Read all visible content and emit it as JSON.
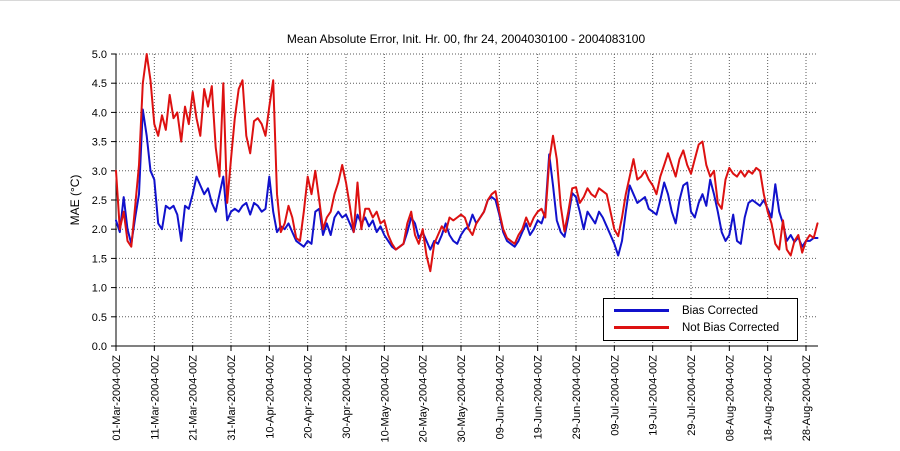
{
  "chart_data": {
    "type": "line",
    "title": "Mean Absolute Error, Init. Hr. 00, fhr 24, 2004030100 - 2004083100",
    "xlabel": "",
    "ylabel": "MAE (°C)",
    "ylim": [
      0.0,
      5.0
    ],
    "ytick_step": 0.5,
    "y_tick_labels": [
      "0.0",
      "0.5",
      "1.0",
      "1.5",
      "2.0",
      "2.5",
      "3.0",
      "3.5",
      "4.0",
      "4.5",
      "5.0"
    ],
    "grid": "dotted",
    "n_points": 184,
    "x_tick_day_index": [
      0,
      10,
      20,
      30,
      40,
      50,
      60,
      70,
      80,
      90,
      100,
      110,
      120,
      130,
      140,
      150,
      160,
      170,
      180
    ],
    "x_tick_labels": [
      "01-Mar-2004-00Z",
      "11-Mar-2004-00Z",
      "21-Mar-2004-00Z",
      "31-Mar-2004-00Z",
      "10-Apr-2004-00Z",
      "20-Apr-2004-00Z",
      "30-Apr-2004-00Z",
      "10-May-2004-00Z",
      "20-May-2004-00Z",
      "30-May-2004-00Z",
      "09-Jun-2004-00Z",
      "19-Jun-2004-00Z",
      "29-Jun-2004-00Z",
      "09-Jul-2004-00Z",
      "19-Jul-2004-00Z",
      "29-Jul-2004-00Z",
      "08-Aug-2004-00Z",
      "18-Aug-2004-00Z",
      "28-Aug-2004-00Z"
    ],
    "legend_position": "inside-lower-right",
    "series": [
      {
        "name": "Bias Corrected",
        "color": "#1111cc",
        "values": [
          2.15,
          1.95,
          2.55,
          2.0,
          1.75,
          2.2,
          2.6,
          4.05,
          3.6,
          3.0,
          2.85,
          2.1,
          2.0,
          2.4,
          2.35,
          2.4,
          2.25,
          1.8,
          2.4,
          2.35,
          2.6,
          2.9,
          2.75,
          2.6,
          2.7,
          2.45,
          2.3,
          2.6,
          2.9,
          2.15,
          2.3,
          2.35,
          2.3,
          2.4,
          2.45,
          2.25,
          2.45,
          2.4,
          2.3,
          2.35,
          2.9,
          2.3,
          1.95,
          2.05,
          2.0,
          2.1,
          1.95,
          1.8,
          1.75,
          1.7,
          1.8,
          1.75,
          2.3,
          2.35,
          1.9,
          2.1,
          1.9,
          2.2,
          2.3,
          2.2,
          2.25,
          2.1,
          1.95,
          2.25,
          2.1,
          2.2,
          2.05,
          2.15,
          1.95,
          2.05,
          1.9,
          1.8,
          1.7,
          1.65,
          1.7,
          1.75,
          1.95,
          2.2,
          2.1,
          1.85,
          1.95,
          1.8,
          1.65,
          1.8,
          1.75,
          1.9,
          2.1,
          1.9,
          1.8,
          1.75,
          1.9,
          2.0,
          2.05,
          2.25,
          2.1,
          2.2,
          2.3,
          2.5,
          2.55,
          2.5,
          2.25,
          1.95,
          1.8,
          1.75,
          1.7,
          1.8,
          1.95,
          2.1,
          1.9,
          2.0,
          2.15,
          2.1,
          2.3,
          3.28,
          2.75,
          2.15,
          1.95,
          1.87,
          2.2,
          2.62,
          2.55,
          2.3,
          2.0,
          2.3,
          2.2,
          2.1,
          2.3,
          2.2,
          2.05,
          1.9,
          1.75,
          1.55,
          1.8,
          2.3,
          2.75,
          2.6,
          2.45,
          2.5,
          2.55,
          2.35,
          2.3,
          2.25,
          2.5,
          2.8,
          2.6,
          2.3,
          2.1,
          2.5,
          2.75,
          2.8,
          2.3,
          2.2,
          2.45,
          2.6,
          2.4,
          2.85,
          2.6,
          2.3,
          1.95,
          1.8,
          1.9,
          2.25,
          1.8,
          1.75,
          2.2,
          2.45,
          2.5,
          2.45,
          2.4,
          2.5,
          2.35,
          2.2,
          2.77,
          2.3,
          2.1,
          1.8,
          1.9,
          1.78,
          1.86,
          1.7,
          1.8,
          1.8,
          1.85,
          1.85
        ]
      },
      {
        "name": "Not Bias Corrected",
        "color": "#dd1111",
        "values": [
          3.0,
          2.0,
          2.3,
          1.8,
          1.7,
          2.4,
          3.1,
          4.5,
          5.0,
          4.55,
          3.8,
          3.6,
          3.95,
          3.7,
          4.3,
          3.9,
          4.0,
          3.5,
          4.1,
          3.8,
          4.35,
          3.9,
          3.6,
          4.4,
          4.1,
          4.45,
          3.4,
          2.9,
          4.5,
          2.45,
          3.2,
          3.9,
          4.4,
          4.55,
          3.6,
          3.3,
          3.85,
          3.9,
          3.8,
          3.6,
          4.1,
          4.55,
          2.6,
          1.95,
          2.1,
          2.4,
          2.2,
          1.85,
          1.8,
          2.3,
          2.9,
          2.6,
          3.0,
          2.5,
          2.0,
          2.2,
          2.3,
          2.6,
          2.8,
          3.1,
          2.8,
          2.4,
          1.95,
          2.8,
          2.0,
          2.35,
          2.35,
          2.2,
          2.3,
          2.1,
          2.15,
          1.9,
          1.75,
          1.65,
          1.7,
          1.75,
          2.1,
          2.3,
          1.9,
          1.75,
          2.0,
          1.55,
          1.28,
          1.75,
          1.9,
          2.05,
          1.95,
          2.2,
          2.15,
          2.2,
          2.25,
          2.2,
          2.0,
          1.9,
          2.1,
          2.2,
          2.3,
          2.5,
          2.6,
          2.65,
          2.3,
          2.0,
          1.85,
          1.8,
          1.75,
          1.9,
          2.0,
          2.2,
          2.05,
          2.2,
          2.3,
          2.35,
          2.2,
          3.17,
          3.6,
          3.2,
          2.4,
          1.96,
          2.3,
          2.7,
          2.72,
          2.45,
          2.55,
          2.7,
          2.6,
          2.55,
          2.7,
          2.65,
          2.6,
          2.3,
          2.0,
          1.88,
          2.2,
          2.6,
          2.9,
          3.2,
          2.85,
          2.9,
          3.0,
          2.85,
          2.75,
          2.6,
          2.9,
          3.1,
          3.3,
          3.1,
          2.9,
          3.2,
          3.35,
          3.1,
          2.95,
          3.2,
          3.45,
          3.5,
          3.1,
          2.9,
          3.0,
          2.45,
          2.35,
          2.85,
          3.05,
          2.95,
          2.9,
          3.0,
          2.9,
          3.0,
          2.95,
          3.05,
          3.0,
          2.6,
          2.3,
          2.1,
          1.75,
          1.65,
          2.15,
          1.65,
          1.55,
          1.8,
          1.9,
          1.6,
          1.8,
          1.9,
          1.85,
          2.1
        ]
      }
    ]
  }
}
